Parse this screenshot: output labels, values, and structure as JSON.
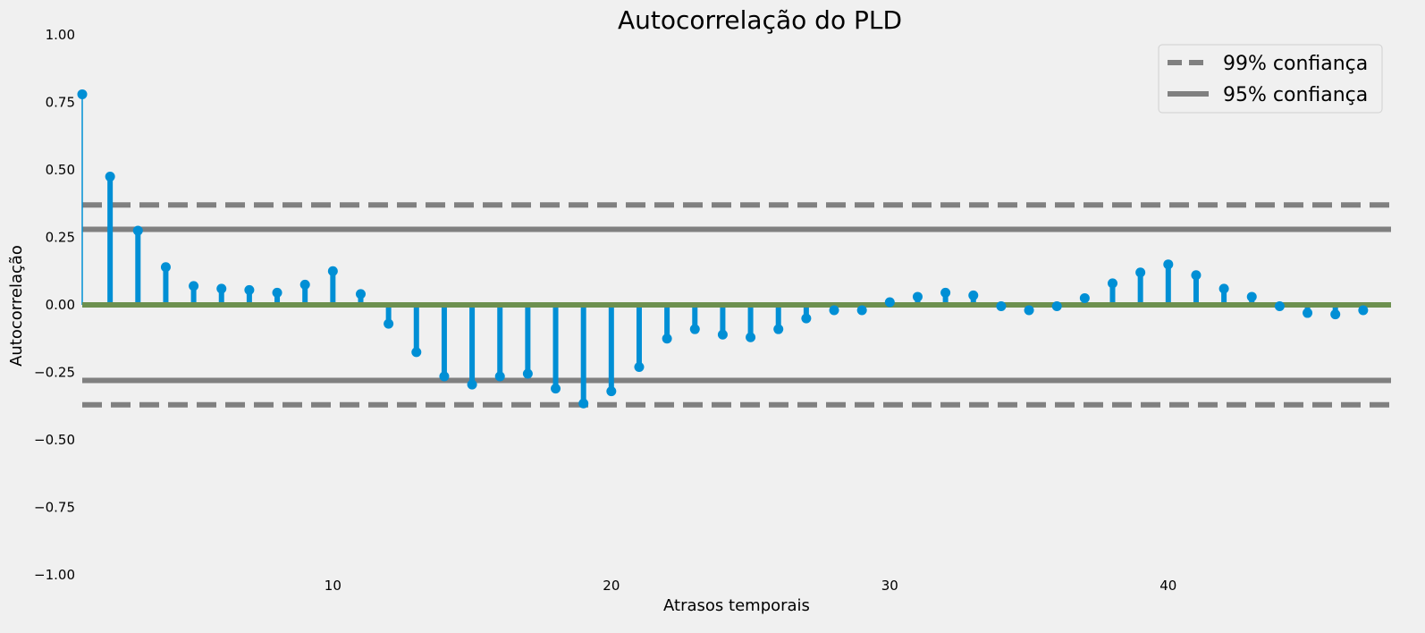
{
  "chart_data": {
    "type": "stem",
    "title": "Autocorrelação do PLD",
    "xlabel": "Atrasos temporais",
    "ylabel": "Autocorrelação",
    "xlim": [
      1,
      48
    ],
    "ylim": [
      -1.0,
      1.0
    ],
    "xticks": [
      10,
      20,
      30,
      40
    ],
    "yticks": [
      1.0,
      0.75,
      0.5,
      0.25,
      0.0,
      -0.25,
      -0.5,
      -0.75,
      -1.0
    ],
    "ytick_labels": [
      "1.00",
      "0.75",
      "0.50",
      "0.25",
      "0.00",
      "−0.25",
      "−0.50",
      "−0.75",
      "−1.00"
    ],
    "grid": false,
    "series": [
      {
        "x": [
          1,
          2,
          3,
          4,
          5,
          6,
          7,
          8,
          9,
          10,
          11,
          12,
          13,
          14,
          15,
          16,
          17,
          18,
          19,
          20,
          21,
          22,
          23,
          24,
          25,
          26,
          27,
          28,
          29,
          30,
          31,
          32,
          33,
          34,
          35,
          36,
          37,
          38,
          39,
          40,
          41,
          42,
          43,
          44,
          45,
          46,
          47
        ],
        "values": [
          0.78,
          0.475,
          0.275,
          0.14,
          0.07,
          0.06,
          0.055,
          0.045,
          0.075,
          0.125,
          0.04,
          -0.07,
          -0.175,
          -0.265,
          -0.295,
          -0.265,
          -0.255,
          -0.31,
          -0.365,
          -0.32,
          -0.23,
          -0.125,
          -0.09,
          -0.11,
          -0.12,
          -0.09,
          -0.05,
          -0.02,
          -0.02,
          0.01,
          0.03,
          0.045,
          0.035,
          -0.005,
          -0.02,
          -0.005,
          0.025,
          0.08,
          0.12,
          0.15,
          0.11,
          0.06,
          0.03,
          -0.005,
          -0.03,
          -0.035,
          -0.02
        ]
      }
    ],
    "confidence_lines": [
      {
        "name": "99% confiança",
        "value": 0.37,
        "style": "dashed"
      },
      {
        "name": "95% confiança",
        "value": 0.28,
        "style": "solid"
      }
    ],
    "legend_position": "top-right",
    "colors": {
      "stem": "#008fd5",
      "confidence": "#808080",
      "zero_line": "#6d904f",
      "background": "#f0f0f0"
    }
  }
}
